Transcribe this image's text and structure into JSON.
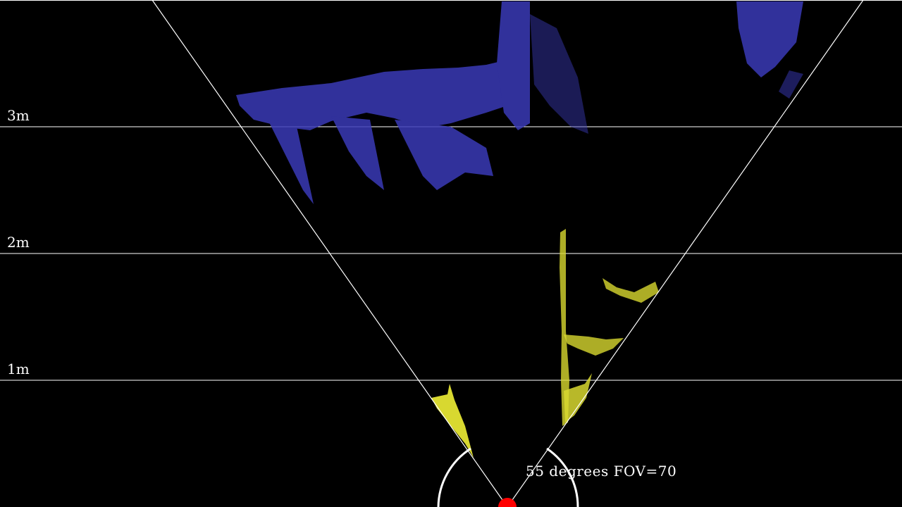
{
  "range_labels": [
    "3m",
    "2m",
    "1m"
  ],
  "fov_readout": "55 degrees FOV=70",
  "colors": {
    "background": "#000000",
    "grid": "#ffffff",
    "far_points": "#3a3ab8",
    "near_points": "#d8d830",
    "sensor": "#ff0000"
  }
}
